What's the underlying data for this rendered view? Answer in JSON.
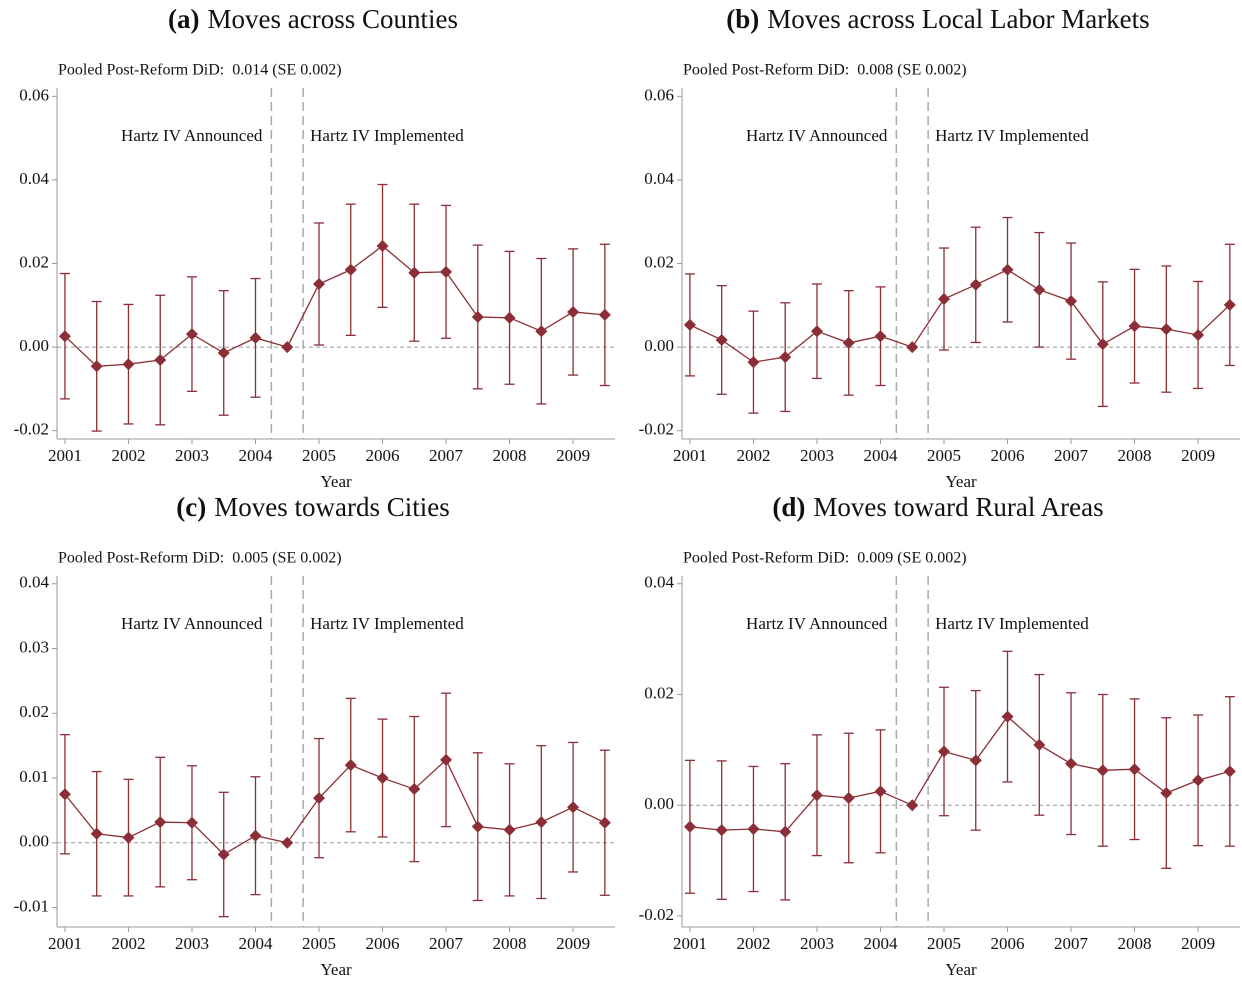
{
  "chart_data": [
    {
      "type": "line",
      "label": "(a)",
      "title": "Moves across Counties",
      "note": "Pooled Post-Reform DiD:  0.014 (SE 0.002)",
      "x": [
        2001,
        2001.5,
        2002,
        2002.5,
        2003,
        2003.5,
        2004,
        2004.5,
        2005,
        2005.5,
        2006,
        2006.5,
        2007,
        2007.5,
        2008,
        2008.5,
        2009,
        2009.5
      ],
      "values": [
        0.0026,
        -0.0046,
        -0.0041,
        -0.0031,
        0.0031,
        -0.0014,
        0.0022,
        0,
        0.0151,
        0.0185,
        0.0242,
        0.0178,
        0.018,
        0.0072,
        0.007,
        0.0038,
        0.0084,
        0.0077
      ],
      "errors": [
        0.015,
        0.0155,
        0.0143,
        0.0155,
        0.0137,
        0.0149,
        0.0142,
        null,
        0.0146,
        0.0157,
        0.0147,
        0.0164,
        0.0159,
        0.0172,
        0.0159,
        0.0174,
        0.0151,
        0.0169
      ],
      "color": "#8b2e35",
      "xlim": [
        2000.875,
        2009.66
      ],
      "xticks": [
        2001,
        2002,
        2003,
        2004,
        2005,
        2006,
        2007,
        2008,
        2009
      ],
      "ylim": [
        -0.022,
        0.062
      ],
      "yticks": [
        -0.02,
        {
          "value": 0,
          "label": "0.00"
        },
        0.02,
        0.04,
        0.06
      ],
      "xlabel": "Year",
      "vlines": [
        2004.25,
        2004.75
      ],
      "vline_labels": [
        "Hartz IV Announced",
        "Hartz IV Implemented"
      ],
      "hline": 0
    },
    {
      "type": "line",
      "label": "(b)",
      "title": "Moves across Local Labor Markets",
      "note": "Pooled Post-Reform DiD:  0.008 (SE 0.002)",
      "x": [
        2001,
        2001.5,
        2002,
        2002.5,
        2003,
        2003.5,
        2004,
        2004.5,
        2005,
        2005.5,
        2006,
        2006.5,
        2007,
        2007.5,
        2008,
        2008.5,
        2009,
        2009.5
      ],
      "values": [
        0.0053,
        0.0017,
        -0.0036,
        -0.0024,
        0.0038,
        0.001,
        0.0026,
        0,
        0.0115,
        0.0149,
        0.0185,
        0.0137,
        0.011,
        0.0007,
        0.005,
        0.0043,
        0.0029,
        0.0101
      ],
      "errors": [
        0.0122,
        0.013,
        0.0122,
        0.013,
        0.0113,
        0.0125,
        0.0118,
        null,
        0.0122,
        0.0138,
        0.0125,
        0.0137,
        0.0139,
        0.0149,
        0.0136,
        0.0151,
        0.0128,
        0.0145
      ],
      "color": "#8b2e35",
      "xlim": [
        2000.875,
        2009.66
      ],
      "xticks": [
        2001,
        2002,
        2003,
        2004,
        2005,
        2006,
        2007,
        2008,
        2009
      ],
      "ylim": [
        -0.022,
        0.062
      ],
      "yticks": [
        -0.02,
        {
          "value": 0,
          "label": "0.00"
        },
        0.02,
        0.04,
        0.06
      ],
      "xlabel": "Year",
      "vlines": [
        2004.25,
        2004.75
      ],
      "vline_labels": [
        "Hartz IV Announced",
        "Hartz IV Implemented"
      ],
      "hline": 0
    },
    {
      "type": "line",
      "label": "(c)",
      "title": "Moves towards Cities",
      "note": "Pooled Post-Reform DiD:  0.005 (SE 0.002)",
      "x": [
        2001,
        2001.5,
        2002,
        2002.5,
        2003,
        2003.5,
        2004,
        2004.5,
        2005,
        2005.5,
        2006,
        2006.5,
        2007,
        2007.5,
        2008,
        2008.5,
        2009,
        2009.5
      ],
      "values": [
        0.0075,
        0.0014,
        0.0008,
        0.0032,
        0.0031,
        -0.0018,
        0.0011,
        0,
        0.0069,
        0.012,
        0.01,
        0.0083,
        0.0128,
        0.0025,
        0.002,
        0.0032,
        0.0055,
        0.0031
      ],
      "errors": [
        0.0092,
        0.0096,
        0.009,
        0.01,
        0.0088,
        0.0096,
        0.0091,
        null,
        0.0092,
        0.0103,
        0.0091,
        0.0112,
        0.0103,
        0.0114,
        0.0102,
        0.0118,
        0.01,
        0.0112
      ],
      "color": "#8b2e35",
      "xlim": [
        2000.875,
        2009.66
      ],
      "xticks": [
        2001,
        2002,
        2003,
        2004,
        2005,
        2006,
        2007,
        2008,
        2009
      ],
      "ylim": [
        -0.013,
        0.0412
      ],
      "yticks": [
        -0.01,
        {
          "value": 0,
          "label": "0.00"
        },
        0.01,
        0.02,
        0.03,
        0.04
      ],
      "xlabel": "Year",
      "vlines": [
        2004.25,
        2004.75
      ],
      "vline_labels": [
        "Hartz IV Announced",
        "Hartz IV Implemented"
      ],
      "hline": 0
    },
    {
      "type": "line",
      "label": "(d)",
      "title": "Moves toward Rural Areas",
      "note": "Pooled Post-Reform DiD:  0.009 (SE 0.002)",
      "x": [
        2001,
        2001.5,
        2002,
        2002.5,
        2003,
        2003.5,
        2004,
        2004.5,
        2005,
        2005.5,
        2006,
        2006.5,
        2007,
        2007.5,
        2008,
        2008.5,
        2009,
        2009.5
      ],
      "values": [
        -0.0039,
        -0.0045,
        -0.0043,
        -0.0048,
        0.0018,
        0.0013,
        0.0025,
        0,
        0.0097,
        0.0081,
        0.016,
        0.0109,
        0.0075,
        0.0063,
        0.0065,
        0.0022,
        0.0045,
        0.0061
      ],
      "errors": [
        0.012,
        0.0125,
        0.0113,
        0.0123,
        0.0109,
        0.0117,
        0.0111,
        null,
        0.0116,
        0.0126,
        0.0118,
        0.0127,
        0.0128,
        0.0137,
        0.0127,
        0.0136,
        0.0118,
        0.0135
      ],
      "color": "#8b2e35",
      "xlim": [
        2000.875,
        2009.66
      ],
      "xticks": [
        2001,
        2002,
        2003,
        2004,
        2005,
        2006,
        2007,
        2008,
        2009
      ],
      "ylim": [
        -0.022,
        0.0414
      ],
      "yticks": [
        -0.02,
        {
          "value": 0,
          "label": "0.00"
        },
        0.02,
        0.04
      ],
      "xlabel": "Year",
      "vlines": [
        2004.25,
        2004.75
      ],
      "vline_labels": [
        "Hartz IV Announced",
        "Hartz IV Implemented"
      ],
      "hline": 0
    }
  ]
}
